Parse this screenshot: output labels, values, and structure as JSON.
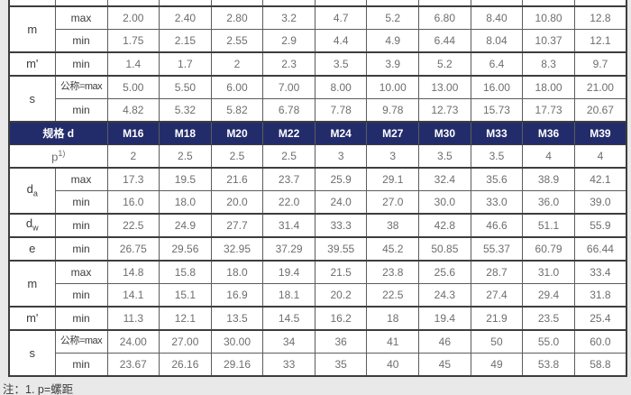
{
  "colors": {
    "page_bg": "#e9e9e9",
    "table_bg": "#ffffff",
    "header_bg": "#232c6b",
    "header_text": "#ffffff",
    "border_dark": "#3d3d3d",
    "border": "#5c5c5c",
    "label_text": "#3c3c3c",
    "value_text": "#6e6e6e"
  },
  "header": {
    "label": "规格 d",
    "columns": [
      "M16",
      "M18",
      "M20",
      "M22",
      "M24",
      "M27",
      "M30",
      "M33",
      "M36",
      "M39"
    ]
  },
  "pitch": {
    "label_main": "p",
    "label_sup": "1)",
    "values": [
      "2",
      "2.5",
      "2.5",
      "2.5",
      "3",
      "3",
      "3.5",
      "3.5",
      "4",
      "4"
    ]
  },
  "sections": {
    "top": [
      {
        "prop": "m",
        "sub": "",
        "rows": [
          {
            "limit": "max",
            "values": [
              "2.00",
              "2.40",
              "2.80",
              "3.2",
              "4.7",
              "5.2",
              "6.80",
              "8.40",
              "10.80",
              "12.8"
            ]
          },
          {
            "limit": "min",
            "values": [
              "1.75",
              "2.15",
              "2.55",
              "2.9",
              "4.4",
              "4.9",
              "6.44",
              "8.04",
              "10.37",
              "12.1"
            ]
          }
        ]
      },
      {
        "prop": "m'",
        "sub": "",
        "rows": [
          {
            "limit": "min",
            "values": [
              "1.4",
              "1.7",
              "2",
              "2.3",
              "3.5",
              "3.9",
              "5.2",
              "6.4",
              "8.3",
              "9.7"
            ]
          }
        ]
      },
      {
        "prop": "s",
        "sub": "",
        "rows": [
          {
            "limit": "公称=max",
            "values": [
              "5.00",
              "5.50",
              "6.00",
              "7.00",
              "8.00",
              "10.00",
              "13.00",
              "16.00",
              "18.00",
              "21.00"
            ]
          },
          {
            "limit": "min",
            "values": [
              "4.82",
              "5.32",
              "5.82",
              "6.78",
              "7.78",
              "9.78",
              "12.73",
              "15.73",
              "17.73",
              "20.67"
            ]
          }
        ]
      }
    ],
    "bottom": [
      {
        "prop": "d",
        "sub": "a",
        "rows": [
          {
            "limit": "max",
            "values": [
              "17.3",
              "19.5",
              "21.6",
              "23.7",
              "25.9",
              "29.1",
              "32.4",
              "35.6",
              "38.9",
              "42.1"
            ]
          },
          {
            "limit": "min",
            "values": [
              "16.0",
              "18.0",
              "20.0",
              "22.0",
              "24.0",
              "27.0",
              "30.0",
              "33.0",
              "36.0",
              "39.0"
            ]
          }
        ]
      },
      {
        "prop": "d",
        "sub": "w",
        "rows": [
          {
            "limit": "min",
            "values": [
              "22.5",
              "24.9",
              "27.7",
              "31.4",
              "33.3",
              "38",
              "42.8",
              "46.6",
              "51.1",
              "55.9"
            ]
          }
        ]
      },
      {
        "prop": "e",
        "sub": "",
        "rows": [
          {
            "limit": "min",
            "values": [
              "26.75",
              "29.56",
              "32.95",
              "37.29",
              "39.55",
              "45.2",
              "50.85",
              "55.37",
              "60.79",
              "66.44"
            ]
          }
        ]
      },
      {
        "prop": "m",
        "sub": "",
        "rows": [
          {
            "limit": "max",
            "values": [
              "14.8",
              "15.8",
              "18.0",
              "19.4",
              "21.5",
              "23.8",
              "25.6",
              "28.7",
              "31.0",
              "33.4"
            ]
          },
          {
            "limit": "min",
            "values": [
              "14.1",
              "15.1",
              "16.9",
              "18.1",
              "20.2",
              "22.5",
              "24.3",
              "27.4",
              "29.4",
              "31.8"
            ]
          }
        ]
      },
      {
        "prop": "m'",
        "sub": "",
        "rows": [
          {
            "limit": "min",
            "values": [
              "11.3",
              "12.1",
              "13.5",
              "14.5",
              "16.2",
              "18",
              "19.4",
              "21.9",
              "23.5",
              "25.4"
            ]
          }
        ]
      },
      {
        "prop": "s",
        "sub": "",
        "rows": [
          {
            "limit": "公称=max",
            "values": [
              "24.00",
              "27.00",
              "30.00",
              "34",
              "36",
              "41",
              "46",
              "50",
              "55.0",
              "60.0"
            ]
          },
          {
            "limit": "min",
            "values": [
              "23.67",
              "26.16",
              "29.16",
              "33",
              "35",
              "40",
              "45",
              "49",
              "53.8",
              "58.8"
            ]
          }
        ]
      }
    ]
  },
  "note": "注：1. p=螺距"
}
